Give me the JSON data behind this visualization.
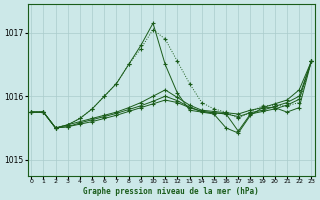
{
  "xlabel": "Graphe pression niveau de la mer (hPa)",
  "ylabel": "",
  "background_color": "#cce8e8",
  "grid_color": "#aacccc",
  "line_color": "#1a5c1a",
  "ylim": [
    1014.75,
    1017.45
  ],
  "yticks": [
    1015,
    1016,
    1017
  ],
  "xlim": [
    -0.3,
    23.3
  ],
  "xticks": [
    0,
    1,
    2,
    3,
    4,
    5,
    6,
    7,
    8,
    9,
    10,
    11,
    12,
    13,
    14,
    15,
    16,
    17,
    18,
    19,
    20,
    21,
    22,
    23
  ],
  "series": [
    {
      "x": [
        0,
        1,
        2,
        3,
        4,
        5,
        6,
        7,
        8,
        9,
        10,
        11,
        12,
        13,
        14,
        15,
        16,
        17,
        18,
        19,
        20,
        21,
        22,
        23
      ],
      "y": [
        1015.75,
        1015.75,
        1015.5,
        1015.55,
        1015.65,
        1015.8,
        1016.0,
        1016.2,
        1016.5,
        1016.75,
        1017.05,
        1016.9,
        1016.55,
        1016.2,
        1015.9,
        1015.8,
        1015.75,
        1015.65,
        1015.75,
        1015.85,
        1015.85,
        1015.85,
        1015.9,
        1016.55
      ],
      "style": "dotted",
      "marker": "+"
    },
    {
      "x": [
        0,
        1,
        2,
        3,
        4,
        5,
        6,
        7,
        8,
        9,
        10,
        11,
        12,
        13,
        14,
        15,
        16,
        17,
        18,
        19,
        20,
        21,
        22,
        23
      ],
      "y": [
        1015.75,
        1015.75,
        1015.5,
        1015.55,
        1015.65,
        1015.8,
        1016.0,
        1016.2,
        1016.5,
        1016.8,
        1017.15,
        1016.5,
        1016.05,
        1015.78,
        1015.75,
        1015.72,
        1015.5,
        1015.42,
        1015.7,
        1015.82,
        1015.82,
        1015.75,
        1015.82,
        1016.55
      ],
      "style": "solid",
      "marker": "+"
    },
    {
      "x": [
        0,
        1,
        2,
        3,
        4,
        5,
        6,
        7,
        8,
        9,
        10,
        11,
        12,
        13,
        14,
        15,
        16,
        17,
        18,
        19,
        20,
        21,
        22,
        23
      ],
      "y": [
        1015.75,
        1015.75,
        1015.5,
        1015.55,
        1015.6,
        1015.65,
        1015.7,
        1015.75,
        1015.82,
        1015.9,
        1016.0,
        1016.1,
        1015.98,
        1015.86,
        1015.78,
        1015.76,
        1015.74,
        1015.72,
        1015.78,
        1015.82,
        1015.88,
        1015.94,
        1016.1,
        1016.55
      ],
      "style": "solid",
      "marker": "+"
    },
    {
      "x": [
        0,
        1,
        2,
        3,
        4,
        5,
        6,
        7,
        8,
        9,
        10,
        11,
        12,
        13,
        14,
        15,
        16,
        17,
        18,
        19,
        20,
        21,
        22,
        23
      ],
      "y": [
        1015.75,
        1015.75,
        1015.5,
        1015.52,
        1015.58,
        1015.63,
        1015.68,
        1015.73,
        1015.79,
        1015.85,
        1015.92,
        1016.0,
        1015.93,
        1015.83,
        1015.76,
        1015.74,
        1015.72,
        1015.68,
        1015.74,
        1015.78,
        1015.84,
        1015.9,
        1016.0,
        1016.55
      ],
      "style": "solid",
      "marker": "+"
    },
    {
      "x": [
        0,
        1,
        2,
        3,
        4,
        5,
        6,
        7,
        8,
        9,
        10,
        11,
        12,
        13,
        14,
        15,
        16,
        17,
        18,
        19,
        20,
        21,
        22,
        23
      ],
      "y": [
        1015.75,
        1015.75,
        1015.5,
        1015.52,
        1015.56,
        1015.6,
        1015.65,
        1015.7,
        1015.76,
        1015.82,
        1015.88,
        1015.94,
        1015.9,
        1015.82,
        1015.76,
        1015.74,
        1015.72,
        1015.45,
        1015.72,
        1015.76,
        1015.8,
        1015.86,
        1015.95,
        1016.55
      ],
      "style": "solid",
      "marker": "+"
    }
  ]
}
